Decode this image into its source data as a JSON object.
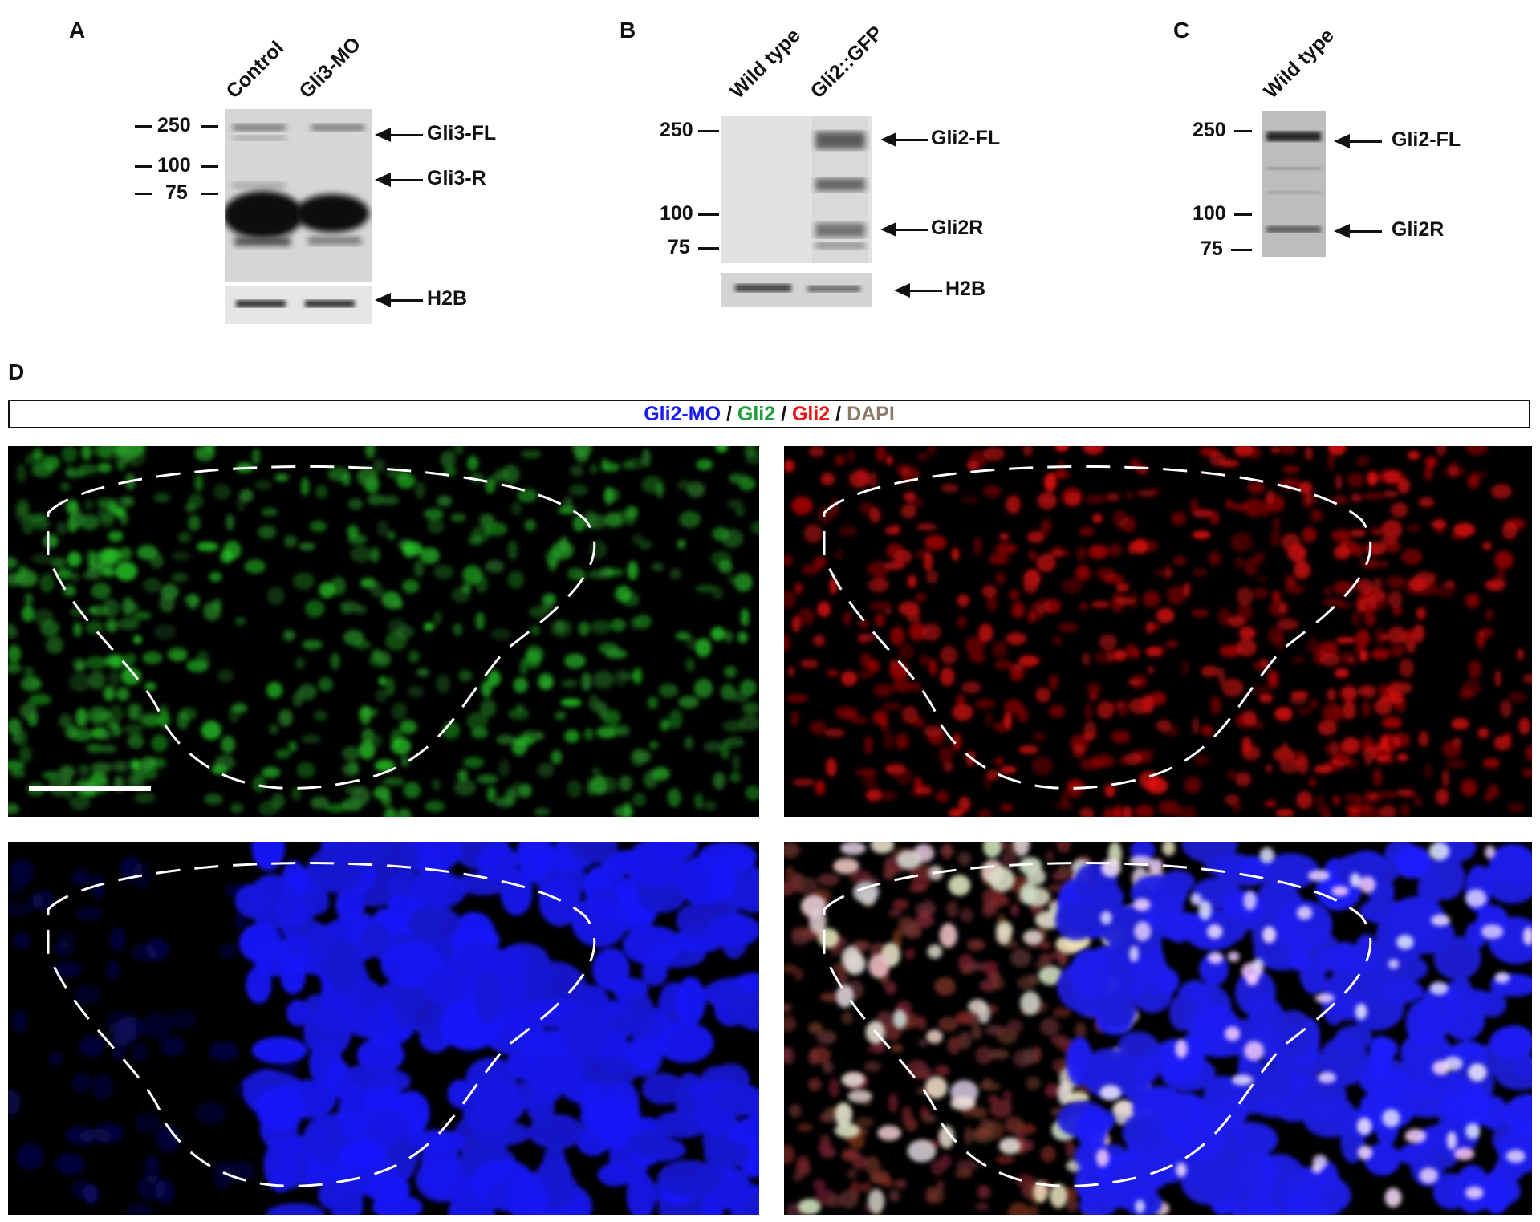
{
  "panels": {
    "A": {
      "letter": "A",
      "lanes": [
        "Control",
        "Gli3-MO"
      ],
      "markers": [
        "250",
        "100",
        "75"
      ],
      "bands": [
        "Gli3-FL",
        "Gli3-R"
      ],
      "loading": "H2B"
    },
    "B": {
      "letter": "B",
      "lanes": [
        "Wild type",
        "Gli2::GFP"
      ],
      "markers": [
        "250",
        "100",
        "75"
      ],
      "bands": [
        "Gli2-FL",
        "Gli2R"
      ],
      "loading": "H2B"
    },
    "C": {
      "letter": "C",
      "lanes": [
        "Wild type"
      ],
      "markers": [
        "250",
        "100",
        "75"
      ],
      "bands": [
        "Gli2-FL",
        "Gli2R"
      ]
    },
    "D": {
      "letter": "D",
      "legend": [
        {
          "text": "Gli2-MO",
          "color": "#1a1aff"
        },
        {
          "text": " / ",
          "color": "#111111"
        },
        {
          "text": "Gli2",
          "color": "#1e9e3a"
        },
        {
          "text": " / ",
          "color": "#111111"
        },
        {
          "text": "Gli2",
          "color": "#ee1111"
        },
        {
          "text": " / ",
          "color": "#111111"
        },
        {
          "text": "DAPI",
          "color": "#8c7b6b"
        }
      ],
      "images": [
        "green-channel",
        "red-channel",
        "blue-channel",
        "merge"
      ]
    }
  }
}
